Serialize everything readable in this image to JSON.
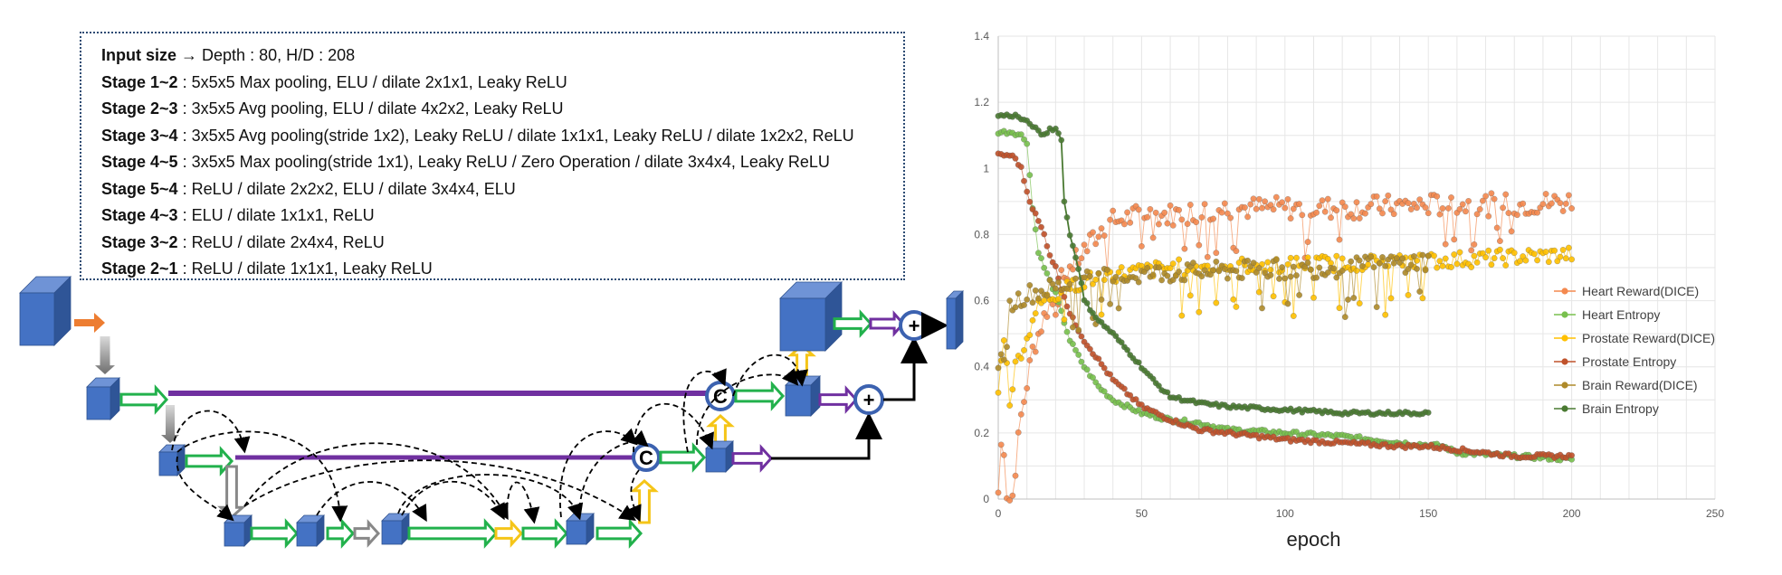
{
  "config": {
    "lines": [
      {
        "stage": "Input size",
        "sep": " → ",
        "text": "Depth : 80, H/D : 208"
      },
      {
        "stage": "Stage 1~2",
        "sep": " : ",
        "text": "5x5x5 Max pooling, ELU / dilate 2x1x1, Leaky ReLU"
      },
      {
        "stage": "Stage 2~3",
        "sep": " : ",
        "text": "3x5x5 Avg pooling, ELU / dilate 4x2x2, Leaky ReLU"
      },
      {
        "stage": "Stage 3~4",
        "sep": " : ",
        "text": "3x5x5 Avg pooling(stride 1x2), Leaky ReLU / dilate 1x1x1, Leaky ReLU / dilate 1x2x2, ReLU"
      },
      {
        "stage": "Stage 4~5",
        "sep": " : ",
        "text": "3x5x5 Max pooling(stride 1x1), Leaky ReLU / Zero Operation / dilate 3x4x4, Leaky ReLU"
      },
      {
        "stage": "Stage 5~4",
        "sep": " : ",
        "text": "ReLU / dilate 2x2x2, ELU / dilate 3x4x4, ELU"
      },
      {
        "stage": "Stage 4~3",
        "sep": " : ",
        "text": "ELU / dilate 1x1x1, ReLU"
      },
      {
        "stage": "Stage 3~2",
        "sep": " : ",
        "text": "ReLU / dilate 2x4x4, ReLU"
      },
      {
        "stage": "Stage 2~1",
        "sep": " : ",
        "text": "ReLU / dilate 1x1x1, Leaky ReLU"
      }
    ]
  },
  "diagram": {
    "concat_symbol": "C",
    "add_symbol": "+",
    "colors": {
      "block": "#4472c4",
      "conv_arrow": "#22b14c",
      "skip": "#7030a0",
      "pool": "#999999",
      "up": "#f5c518",
      "input_arrow": "#ed7d31"
    }
  },
  "chart_data": {
    "type": "scatter",
    "xlabel": "epoch",
    "ylabel": "",
    "xlim": [
      0,
      250
    ],
    "ylim": [
      0,
      1.4
    ],
    "xticks": [
      "0",
      "50",
      "100",
      "150",
      "200",
      "250"
    ],
    "yticks": [
      "0",
      "0.2",
      "0.4",
      "0.6",
      "0.8",
      "1",
      "1.2",
      "1.4"
    ],
    "grid": true,
    "legend_position": "right",
    "series": [
      {
        "name": "Heart Reward(DICE)",
        "color": "#f4894f",
        "length": 200,
        "points": [
          [
            0,
            0.02
          ],
          [
            1,
            0.16
          ],
          [
            2,
            0.16
          ],
          [
            3,
            0.02
          ],
          [
            4,
            0.0
          ],
          [
            5,
            0.01
          ],
          [
            6,
            0.1
          ],
          [
            8,
            0.25
          ],
          [
            10,
            0.35
          ],
          [
            12,
            0.45
          ],
          [
            14,
            0.5
          ],
          [
            16,
            0.55
          ],
          [
            18,
            0.6
          ],
          [
            20,
            0.58
          ],
          [
            22,
            0.66
          ],
          [
            25,
            0.7
          ],
          [
            30,
            0.75
          ],
          [
            35,
            0.8
          ],
          [
            40,
            0.84
          ],
          [
            50,
            0.86
          ],
          [
            60,
            0.86
          ],
          [
            80,
            0.88
          ],
          [
            100,
            0.88
          ],
          [
            120,
            0.88
          ],
          [
            150,
            0.89
          ],
          [
            180,
            0.89
          ],
          [
            200,
            0.9
          ]
        ],
        "noise": 0.035
      },
      {
        "name": "Heart Entropy",
        "color": "#78c04e",
        "length": 200,
        "points": [
          [
            0,
            1.11
          ],
          [
            5,
            1.11
          ],
          [
            8,
            1.1
          ],
          [
            10,
            1.08
          ],
          [
            12,
            0.88
          ],
          [
            14,
            0.75
          ],
          [
            16,
            0.7
          ],
          [
            18,
            0.66
          ],
          [
            20,
            0.62
          ],
          [
            25,
            0.48
          ],
          [
            30,
            0.4
          ],
          [
            35,
            0.34
          ],
          [
            40,
            0.3
          ],
          [
            50,
            0.26
          ],
          [
            60,
            0.24
          ],
          [
            70,
            0.23
          ],
          [
            80,
            0.21
          ],
          [
            100,
            0.2
          ],
          [
            120,
            0.19
          ],
          [
            140,
            0.17
          ],
          [
            155,
            0.16
          ],
          [
            160,
            0.14
          ],
          [
            180,
            0.13
          ],
          [
            200,
            0.12
          ]
        ],
        "noise": 0.006
      },
      {
        "name": "Prostate Reward(DICE)",
        "color": "#ffc000",
        "length": 200,
        "points": [
          [
            0,
            0.32
          ],
          [
            2,
            0.5
          ],
          [
            4,
            0.3
          ],
          [
            6,
            0.4
          ],
          [
            8,
            0.45
          ],
          [
            10,
            0.48
          ],
          [
            12,
            0.55
          ],
          [
            14,
            0.58
          ],
          [
            16,
            0.6
          ],
          [
            20,
            0.62
          ],
          [
            25,
            0.64
          ],
          [
            30,
            0.66
          ],
          [
            40,
            0.68
          ],
          [
            60,
            0.7
          ],
          [
            100,
            0.71
          ],
          [
            150,
            0.72
          ],
          [
            200,
            0.74
          ]
        ],
        "noise": 0.025
      },
      {
        "name": "Prostate Entropy",
        "color": "#c0522b",
        "length": 200,
        "points": [
          [
            0,
            1.04
          ],
          [
            4,
            1.04
          ],
          [
            6,
            1.03
          ],
          [
            8,
            1.0
          ],
          [
            10,
            0.93
          ],
          [
            12,
            0.88
          ],
          [
            14,
            0.84
          ],
          [
            16,
            0.8
          ],
          [
            18,
            0.74
          ],
          [
            20,
            0.7
          ],
          [
            22,
            0.64
          ],
          [
            25,
            0.56
          ],
          [
            30,
            0.48
          ],
          [
            35,
            0.42
          ],
          [
            40,
            0.36
          ],
          [
            50,
            0.28
          ],
          [
            60,
            0.24
          ],
          [
            70,
            0.21
          ],
          [
            80,
            0.2
          ],
          [
            100,
            0.18
          ],
          [
            120,
            0.17
          ],
          [
            140,
            0.16
          ],
          [
            150,
            0.16
          ],
          [
            160,
            0.15
          ],
          [
            180,
            0.13
          ],
          [
            200,
            0.13
          ]
        ],
        "noise": 0.006
      },
      {
        "name": "Brain Reward(DICE)",
        "color": "#ae8a2a",
        "length": 150,
        "points": [
          [
            0,
            0.42
          ],
          [
            2,
            0.4
          ],
          [
            4,
            0.58
          ],
          [
            6,
            0.6
          ],
          [
            8,
            0.61
          ],
          [
            10,
            0.62
          ],
          [
            15,
            0.63
          ],
          [
            20,
            0.64
          ],
          [
            30,
            0.66
          ],
          [
            50,
            0.68
          ],
          [
            80,
            0.69
          ],
          [
            120,
            0.7
          ],
          [
            150,
            0.72
          ]
        ],
        "noise": 0.03
      },
      {
        "name": "Brain Entropy",
        "color": "#4a7a32",
        "length": 150,
        "points": [
          [
            0,
            1.16
          ],
          [
            6,
            1.16
          ],
          [
            8,
            1.15
          ],
          [
            10,
            1.14
          ],
          [
            12,
            1.13
          ],
          [
            14,
            1.11
          ],
          [
            16,
            1.1
          ],
          [
            18,
            1.12
          ],
          [
            20,
            1.12
          ],
          [
            22,
            1.09
          ],
          [
            23,
            0.9
          ],
          [
            25,
            0.8
          ],
          [
            28,
            0.7
          ],
          [
            30,
            0.6
          ],
          [
            35,
            0.54
          ],
          [
            40,
            0.5
          ],
          [
            45,
            0.45
          ],
          [
            50,
            0.4
          ],
          [
            55,
            0.35
          ],
          [
            60,
            0.31
          ],
          [
            70,
            0.29
          ],
          [
            80,
            0.28
          ],
          [
            100,
            0.27
          ],
          [
            120,
            0.26
          ],
          [
            150,
            0.26
          ]
        ],
        "noise": 0.005
      }
    ]
  }
}
